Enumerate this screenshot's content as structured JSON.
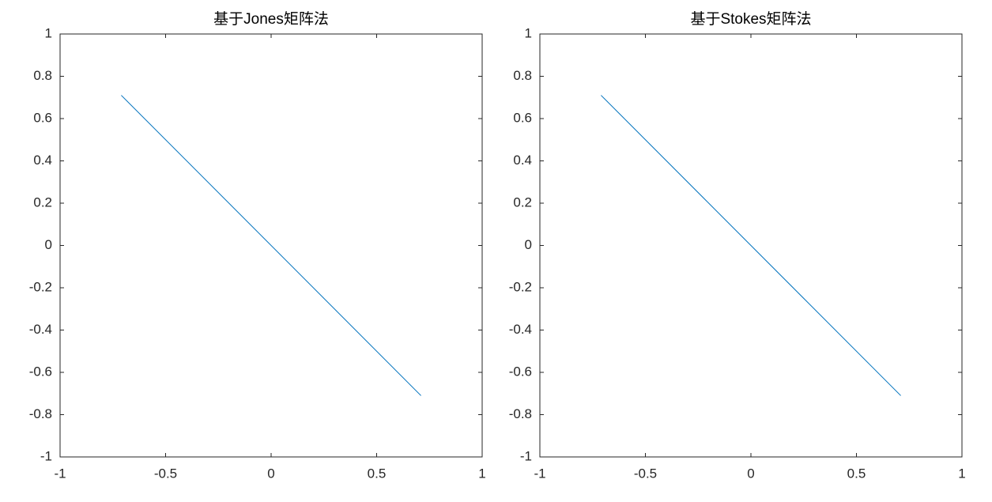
{
  "chart_data": [
    {
      "type": "line",
      "title": "基于Jones矩阵法",
      "x": [
        -0.71,
        0.71
      ],
      "values": [
        0.71,
        -0.71
      ],
      "color": "#0072bd",
      "xlim": [
        -1,
        1
      ],
      "ylim": [
        -1,
        1
      ],
      "xticks": [
        -1,
        -0.5,
        0,
        0.5,
        1
      ],
      "yticks": [
        -1,
        -0.8,
        -0.6,
        -0.4,
        -0.2,
        0,
        0.2,
        0.4,
        0.6,
        0.8,
        1
      ]
    },
    {
      "type": "line",
      "title": "基于Stokes矩阵法",
      "x": [
        -0.71,
        0.71
      ],
      "values": [
        0.71,
        -0.71
      ],
      "color": "#0072bd",
      "xlim": [
        -1,
        1
      ],
      "ylim": [
        -1,
        1
      ],
      "xticks": [
        -1,
        -0.5,
        0,
        0.5,
        1
      ],
      "yticks": [
        -1,
        -0.8,
        -0.6,
        -0.4,
        -0.2,
        0,
        0.2,
        0.4,
        0.6,
        0.8,
        1
      ]
    }
  ]
}
